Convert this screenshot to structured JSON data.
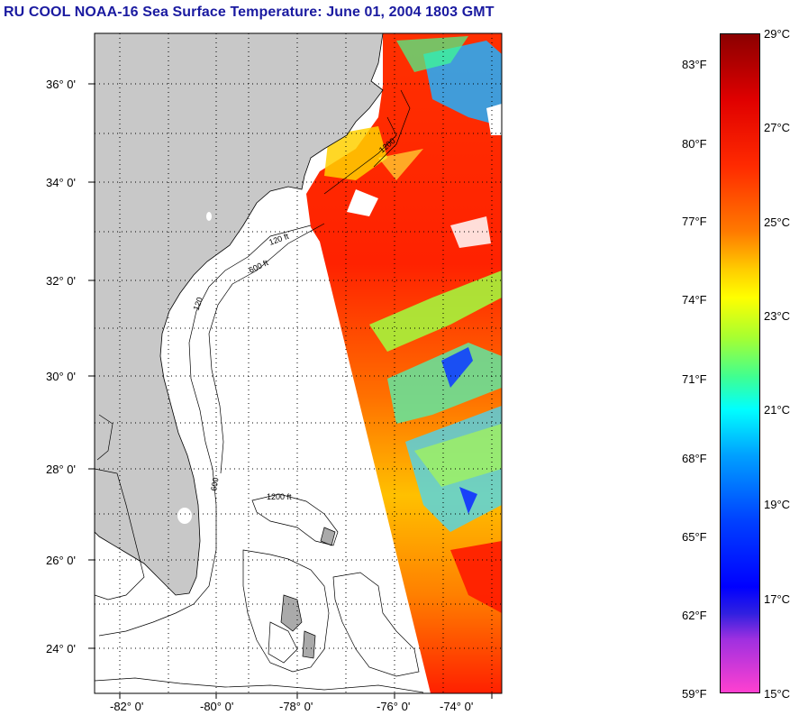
{
  "title": "RU COOL  NOAA-16  Sea Surface Temperature:  June 01, 2004 1803 GMT",
  "map": {
    "lat_labels": [
      "36° 0'",
      "34° 0'",
      "32° 0'",
      "30° 0'",
      "28° 0'",
      "26° 0'",
      "24° 0'"
    ],
    "lon_labels": [
      "-82° 0'",
      "-80° 0'",
      "-78° 0'",
      "-76° 0'",
      "-74° 0'"
    ],
    "contour_labels": [
      "120 ft",
      "600 ft",
      "1200 ft",
      "120",
      "600",
      "1200"
    ]
  },
  "colorbar": {
    "celsius": [
      "29°C",
      "27°C",
      "25°C",
      "23°C",
      "21°C",
      "19°C",
      "17°C",
      "15°C"
    ],
    "fahrenheit": [
      "83°F",
      "80°F",
      "77°F",
      "74°F",
      "71°F",
      "68°F",
      "65°F",
      "62°F",
      "59°F"
    ]
  },
  "colors": {
    "title": "#1a1aa0",
    "land": "#c8c8c8",
    "warm": "#ff2000",
    "cool": "#00c8ff"
  }
}
